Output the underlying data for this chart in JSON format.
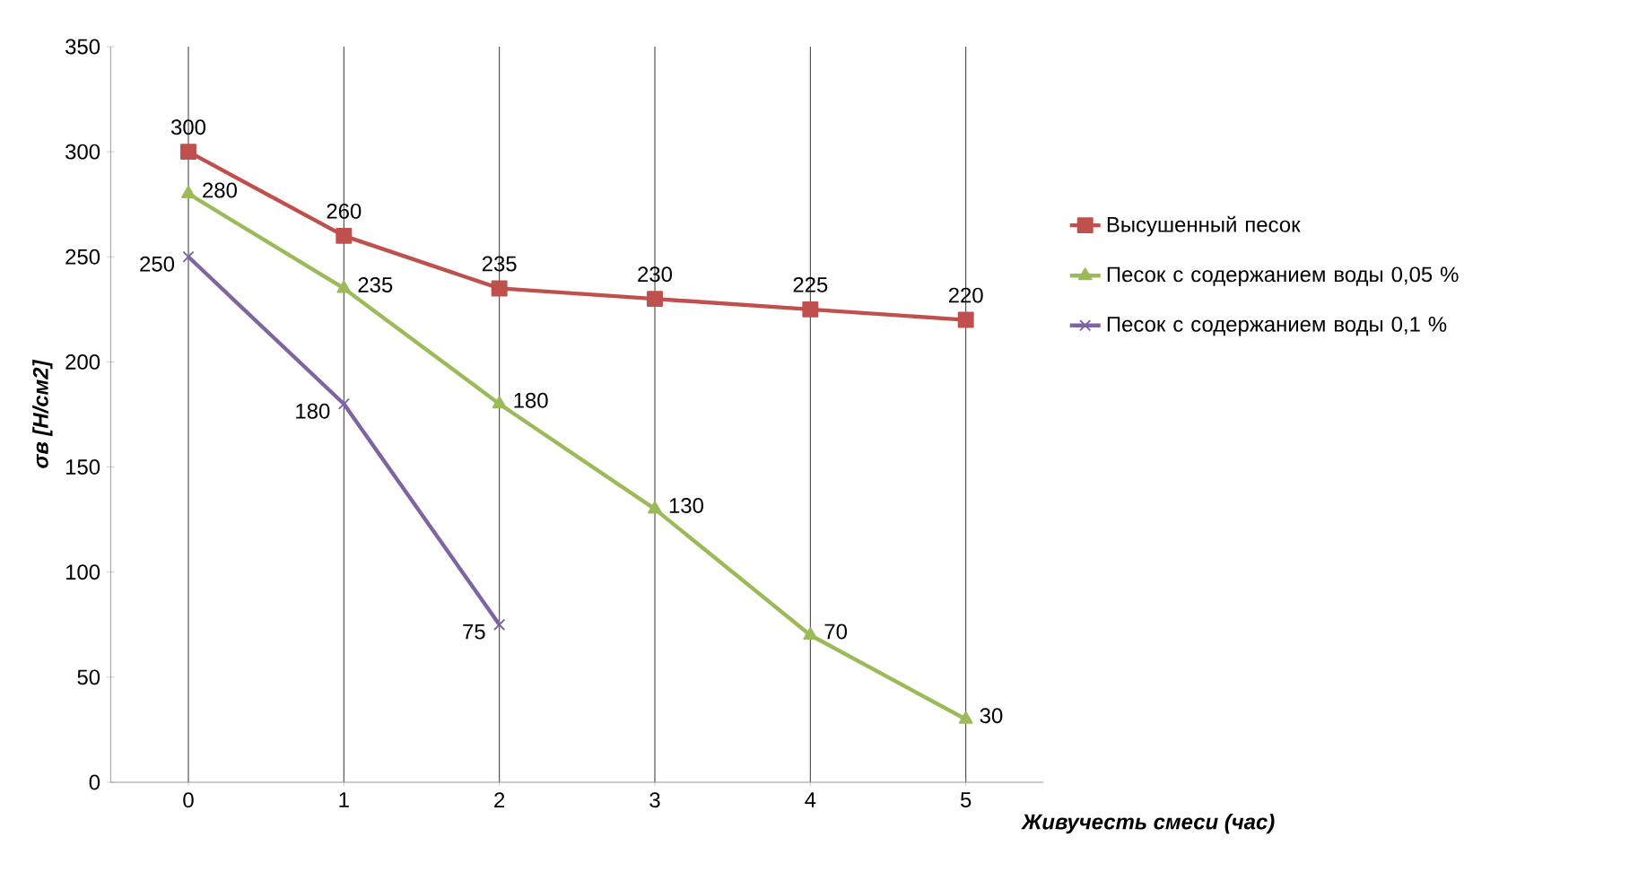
{
  "chart_data": {
    "type": "line",
    "ylabel": "σв [Н/см2]",
    "xlabel": "Живучесть смеси (час)",
    "categories": [
      "0",
      "1",
      "2",
      "3",
      "4",
      "5"
    ],
    "series": [
      {
        "name": "Высушенный песок",
        "color": "#c0504d",
        "marker": "square",
        "values": [
          300,
          260,
          235,
          230,
          225,
          220
        ]
      },
      {
        "name": "Песок с содержанием воды 0,05 %",
        "color": "#9bbb59",
        "marker": "triangle",
        "values": [
          280,
          235,
          180,
          130,
          70,
          30
        ]
      },
      {
        "name": "Песок с содержанием воды 0,1 %",
        "color": "#8064a2",
        "marker": "cross",
        "values": [
          250,
          180,
          75,
          null,
          null,
          null
        ]
      }
    ],
    "ylim": [
      0,
      350
    ],
    "yticks": [
      0,
      50,
      100,
      150,
      200,
      250,
      300,
      350
    ],
    "grid": "x",
    "legend": "right",
    "data_labels": true
  }
}
